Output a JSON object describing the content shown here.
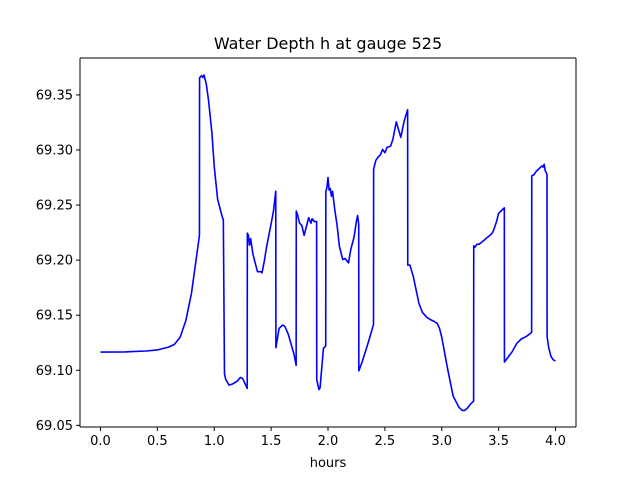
{
  "chart_data": {
    "type": "line",
    "title": "Water Depth h at gauge 525",
    "xlabel": "hours",
    "ylabel": "",
    "xlim": [
      -0.18,
      4.18
    ],
    "ylim": [
      69.0485,
      69.3835
    ],
    "grid": false,
    "x_ticks": [
      {
        "value": 0.0,
        "label": "0.0"
      },
      {
        "value": 0.5,
        "label": "0.5"
      },
      {
        "value": 1.0,
        "label": "1.0"
      },
      {
        "value": 1.5,
        "label": "1.5"
      },
      {
        "value": 2.0,
        "label": "2.0"
      },
      {
        "value": 2.5,
        "label": "2.5"
      },
      {
        "value": 3.0,
        "label": "3.0"
      },
      {
        "value": 3.5,
        "label": "3.5"
      },
      {
        "value": 4.0,
        "label": "4.0"
      }
    ],
    "y_ticks": [
      {
        "value": 69.05,
        "label": "69.05"
      },
      {
        "value": 69.1,
        "label": "69.10"
      },
      {
        "value": 69.15,
        "label": "69.15"
      },
      {
        "value": 69.2,
        "label": "69.20"
      },
      {
        "value": 69.25,
        "label": "69.25"
      },
      {
        "value": 69.3,
        "label": "69.30"
      },
      {
        "value": 69.35,
        "label": "69.35"
      }
    ],
    "series": [
      {
        "color": "#0000ff",
        "x": [
          0.0,
          0.2,
          0.4,
          0.5,
          0.6,
          0.65,
          0.7,
          0.75,
          0.8,
          0.84,
          0.87,
          0.871,
          0.89,
          0.9,
          0.91,
          0.93,
          0.95,
          0.98,
          1.0,
          1.03,
          1.07,
          1.08,
          1.09,
          1.1,
          1.13,
          1.16,
          1.2,
          1.23,
          1.25,
          1.29,
          1.291,
          1.3,
          1.31,
          1.32,
          1.34,
          1.36,
          1.38,
          1.41,
          1.42,
          1.44,
          1.46,
          1.5,
          1.52,
          1.541,
          1.542,
          1.57,
          1.6,
          1.62,
          1.65,
          1.7,
          1.72,
          1.721,
          1.73,
          1.75,
          1.77,
          1.79,
          1.81,
          1.83,
          1.85,
          1.86,
          1.88,
          1.9,
          1.901,
          1.92,
          1.93,
          1.96,
          1.97,
          1.98,
          1.981,
          1.99,
          2.0,
          2.01,
          2.02,
          2.03,
          2.04,
          2.06,
          2.08,
          2.1,
          2.11,
          2.13,
          2.15,
          2.18,
          2.2,
          2.23,
          2.25,
          2.26,
          2.27,
          2.271,
          2.3,
          2.35,
          2.4,
          2.401,
          2.42,
          2.44,
          2.46,
          2.48,
          2.5,
          2.52,
          2.55,
          2.57,
          2.6,
          2.62,
          2.64,
          2.67,
          2.7,
          2.701,
          2.72,
          2.75,
          2.8,
          2.83,
          2.87,
          2.9,
          2.93,
          2.96,
          2.98,
          3.0,
          3.05,
          3.1,
          3.15,
          3.18,
          3.2,
          3.22,
          3.25,
          3.28,
          3.281,
          3.29,
          3.31,
          3.33,
          3.36,
          3.4,
          3.43,
          3.45,
          3.48,
          3.5,
          3.53,
          3.55,
          3.551,
          3.58,
          3.62,
          3.66,
          3.7,
          3.74,
          3.78,
          3.79,
          3.791,
          3.81,
          3.83,
          3.85,
          3.87,
          3.88,
          3.89,
          3.9,
          3.91,
          3.92,
          3.925,
          3.926,
          3.94,
          3.96,
          3.98,
          4.0
        ],
        "y": [
          69.1165,
          69.1166,
          69.1175,
          69.1185,
          69.121,
          69.1235,
          69.13,
          69.145,
          69.17,
          69.2,
          69.2225,
          69.3655,
          69.3675,
          69.3658,
          69.368,
          69.36,
          69.345,
          69.315,
          69.285,
          69.255,
          69.2395,
          69.2365,
          69.097,
          69.092,
          69.0865,
          69.0875,
          69.09,
          69.0935,
          69.0925,
          69.0835,
          69.2245,
          69.2225,
          69.2135,
          69.2195,
          69.2055,
          69.1975,
          69.1895,
          69.1895,
          69.1885,
          69.199,
          69.212,
          69.233,
          69.244,
          69.2625,
          69.1205,
          69.138,
          69.141,
          69.14,
          69.133,
          69.115,
          69.1045,
          69.2445,
          69.242,
          69.2335,
          69.2315,
          69.2225,
          69.2305,
          69.2385,
          69.2335,
          69.2375,
          69.235,
          69.235,
          69.0915,
          69.0825,
          69.084,
          69.12,
          69.121,
          69.122,
          69.2625,
          69.2655,
          69.275,
          69.2635,
          69.265,
          69.258,
          69.2625,
          69.2455,
          69.2315,
          69.2125,
          69.2085,
          69.2005,
          69.2015,
          69.1975,
          69.2095,
          69.2215,
          69.2355,
          69.2405,
          69.2325,
          69.0995,
          69.1075,
          69.124,
          69.1415,
          69.2825,
          69.2905,
          69.2935,
          69.2955,
          69.3005,
          69.2975,
          69.3025,
          69.3035,
          69.3095,
          69.3255,
          69.3185,
          69.3115,
          69.3265,
          69.3365,
          69.1955,
          69.1955,
          69.185,
          69.1605,
          69.1525,
          69.148,
          69.146,
          69.1445,
          69.1425,
          69.138,
          69.13,
          69.102,
          69.0765,
          69.0665,
          69.0635,
          69.0635,
          69.065,
          69.069,
          69.072,
          69.213,
          69.2115,
          69.2145,
          69.2145,
          69.217,
          69.2205,
          69.223,
          69.2255,
          69.2345,
          69.2425,
          69.2455,
          69.2475,
          69.1075,
          69.1115,
          69.117,
          69.1245,
          69.1285,
          69.1305,
          69.1335,
          69.1345,
          69.2765,
          69.2775,
          69.2805,
          69.2825,
          69.2845,
          69.2855,
          69.2845,
          69.287,
          69.281,
          69.279,
          69.278,
          69.1305,
          69.1205,
          69.1125,
          69.1095,
          69.1085
        ]
      }
    ]
  }
}
